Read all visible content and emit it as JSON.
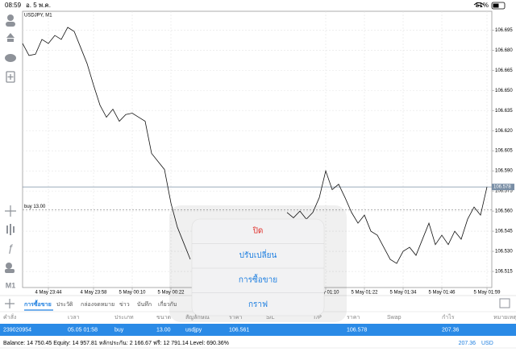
{
  "status_bar": {
    "time": "08:59",
    "date": "อ. 5 พ.ค.",
    "battery": "51%"
  },
  "chart_data": {
    "type": "line",
    "title": "USDJPY, M1",
    "timeframe": "M1",
    "categories": [
      null,
      null,
      null,
      null,
      "4 May 23:44",
      null,
      null,
      null,
      null,
      null,
      null,
      "4 May 23:58",
      null,
      null,
      null,
      null,
      null,
      "5 May 00:10",
      null,
      null,
      null,
      null,
      null,
      "5 May 00:22",
      null,
      null,
      null,
      null,
      null,
      null,
      null,
      null,
      null,
      null,
      null,
      null,
      null,
      null,
      null,
      null,
      null,
      null,
      null,
      null,
      null,
      null,
      null,
      "5 May 01:10",
      null,
      null,
      null,
      null,
      null,
      "5 May 01:22",
      null,
      null,
      null,
      null,
      null,
      "5 May 01:34",
      null,
      null,
      null,
      null,
      null,
      "5 May 01:46",
      null,
      null,
      null,
      null,
      null,
      null,
      "5 May 01:59"
    ],
    "series": [
      {
        "name": "USDJPY",
        "color": "#111111",
        "values": [
          106.685,
          106.676,
          106.677,
          106.688,
          106.685,
          106.691,
          106.688,
          106.697,
          106.694,
          106.682,
          106.67,
          106.654,
          106.639,
          106.63,
          106.636,
          106.627,
          106.632,
          106.633,
          106.63,
          106.627,
          106.603,
          106.597,
          106.591,
          106.566,
          106.548,
          106.536,
          106.524,
          null,
          null,
          null,
          null,
          null,
          null,
          null,
          null,
          null,
          null,
          null,
          null,
          null,
          null,
          106.559,
          106.555,
          106.56,
          106.554,
          106.559,
          106.57,
          106.59,
          106.576,
          106.58,
          106.57,
          106.559,
          106.551,
          106.557,
          106.545,
          106.542,
          106.533,
          106.524,
          106.521,
          106.53,
          106.533,
          106.527,
          106.539,
          106.551,
          106.535,
          106.542,
          106.535,
          106.545,
          106.539,
          106.554,
          106.563,
          106.557,
          106.578
        ]
      }
    ],
    "ylim": [
      106.503,
      106.709
    ],
    "yticks": [
      106.695,
      {
        "value": 106.68,
        "label": "106.680"
      },
      106.665,
      {
        "value": 106.65,
        "label": "106.650"
      },
      106.635,
      {
        "value": 106.62,
        "label": "106.620"
      },
      106.605,
      {
        "value": 106.59,
        "label": "106.590"
      },
      106.575,
      {
        "value": 106.56,
        "label": "106.560"
      },
      106.545,
      {
        "value": 106.53,
        "label": "106.530"
      },
      106.515
    ],
    "grid": true,
    "price_line": {
      "value": 106.578,
      "color": "#7a8fa6"
    },
    "order_line": {
      "value": 106.561,
      "label": "buy 13.00",
      "color": "#888888"
    }
  },
  "popup": {
    "items": [
      {
        "label": "ปิด",
        "color": "#e0322d"
      },
      {
        "label": "ปรับเปลี่ยน",
        "color": "#1e7fe0"
      },
      {
        "label": "การซื้อขาย",
        "color": "#1e7fe0"
      },
      {
        "label": "กราฟ",
        "color": "#1e7fe0"
      }
    ]
  },
  "tabs": [
    "การซื้อขาย",
    "ประวัติ",
    "กล่องจดหมาย",
    "ข่าว",
    "บันทึก",
    "เกี่ยวกับ"
  ],
  "table": {
    "columns": [
      "คำสั่ง",
      "เวลา",
      "ประเภท",
      "ขนาด",
      "สัญลักษณ์",
      "ราคา",
      "S/L",
      "T/P",
      "ราคา",
      "Swap",
      "กำไร",
      "หมายเหตุ"
    ],
    "rows": [
      [
        "239020954",
        "05.05 01:58",
        "buy",
        "13.00",
        "usdjpy",
        "106.561",
        null,
        null,
        "106.578",
        null,
        "207.36",
        null
      ]
    ]
  },
  "balance_bar": {
    "summary": "Balance: 14 750.45 Equity: 14 957.81 หลักประกัน: 2 166.67 ฟรี: 12 791.14 Level: 690.36%",
    "profit": "207.36",
    "currency": "USD"
  }
}
